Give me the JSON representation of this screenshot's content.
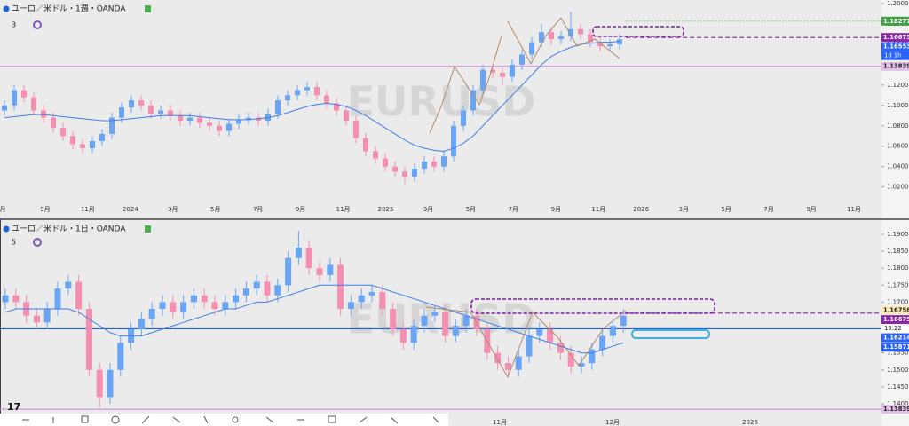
{
  "chart_data": [
    {
      "type": "candlestick",
      "title": "ユーロ／米ドル・1週・OANDA",
      "indicator_count": "3",
      "watermark": "EURUSD",
      "up_color": "#6aa5f5",
      "down_color": "#f48fb1",
      "open": [
        1.095,
        1.1,
        1.115,
        1.108,
        1.095,
        1.088,
        1.078,
        1.07,
        1.062,
        1.058,
        1.065,
        1.072,
        1.088,
        1.098,
        1.105,
        1.1,
        1.092,
        1.095,
        1.09,
        1.085,
        1.088,
        1.083,
        1.08,
        1.075,
        1.082,
        1.086,
        1.088,
        1.085,
        1.092,
        1.105,
        1.11,
        1.115,
        1.118,
        1.11,
        1.102,
        1.095,
        1.085,
        1.068,
        1.055,
        1.048,
        1.04,
        1.035,
        1.03,
        1.038,
        1.045,
        1.04,
        1.05,
        1.08,
        1.095,
        1.115,
        1.135,
        1.132,
        1.128,
        1.14,
        1.15,
        1.162,
        1.172,
        1.165,
        1.168,
        1.175,
        1.17,
        1.162,
        1.158,
        1.16
      ],
      "high": [
        1.105,
        1.12,
        1.12,
        1.113,
        1.1,
        1.093,
        1.083,
        1.075,
        1.067,
        1.07,
        1.077,
        1.093,
        1.103,
        1.11,
        1.11,
        1.105,
        1.1,
        1.1,
        1.095,
        1.093,
        1.093,
        1.088,
        1.085,
        1.087,
        1.091,
        1.093,
        1.093,
        1.097,
        1.11,
        1.115,
        1.12,
        1.123,
        1.123,
        1.115,
        1.107,
        1.1,
        1.09,
        1.073,
        1.06,
        1.053,
        1.045,
        1.04,
        1.043,
        1.05,
        1.05,
        1.055,
        1.085,
        1.1,
        1.12,
        1.14,
        1.14,
        1.137,
        1.145,
        1.155,
        1.167,
        1.18,
        1.177,
        1.173,
        1.192,
        1.18,
        1.175,
        1.167,
        1.165,
        1.17
      ],
      "low": [
        1.09,
        1.095,
        1.103,
        1.09,
        1.083,
        1.073,
        1.065,
        1.057,
        1.053,
        1.053,
        1.06,
        1.067,
        1.083,
        1.093,
        1.095,
        1.087,
        1.087,
        1.085,
        1.08,
        1.08,
        1.078,
        1.075,
        1.07,
        1.07,
        1.077,
        1.081,
        1.08,
        1.08,
        1.087,
        1.1,
        1.105,
        1.11,
        1.105,
        1.097,
        1.09,
        1.08,
        1.063,
        1.05,
        1.043,
        1.035,
        1.03,
        1.023,
        1.025,
        1.033,
        1.035,
        1.035,
        1.045,
        1.075,
        1.09,
        1.11,
        1.127,
        1.12,
        1.123,
        1.135,
        1.145,
        1.157,
        1.16,
        1.16,
        1.163,
        1.165,
        1.157,
        1.153,
        1.153,
        1.155
      ],
      "close": [
        1.1,
        1.115,
        1.108,
        1.095,
        1.088,
        1.078,
        1.07,
        1.062,
        1.058,
        1.065,
        1.072,
        1.088,
        1.098,
        1.105,
        1.1,
        1.092,
        1.095,
        1.09,
        1.085,
        1.088,
        1.083,
        1.08,
        1.075,
        1.082,
        1.086,
        1.088,
        1.085,
        1.092,
        1.105,
        1.11,
        1.115,
        1.118,
        1.11,
        1.102,
        1.095,
        1.085,
        1.068,
        1.055,
        1.048,
        1.04,
        1.035,
        1.03,
        1.038,
        1.045,
        1.04,
        1.05,
        1.08,
        1.095,
        1.115,
        1.135,
        1.132,
        1.128,
        1.14,
        1.15,
        1.162,
        1.172,
        1.165,
        1.168,
        1.175,
        1.17,
        1.162,
        1.158,
        1.16,
        1.165
      ],
      "ma": {
        "color": "#3f7fe6",
        "values": [
          1.088,
          1.089,
          1.09,
          1.091,
          1.091,
          1.09,
          1.089,
          1.088,
          1.087,
          1.086,
          1.085,
          1.085,
          1.086,
          1.087,
          1.088,
          1.089,
          1.09,
          1.09,
          1.09,
          1.09,
          1.089,
          1.088,
          1.087,
          1.086,
          1.086,
          1.086,
          1.087,
          1.088,
          1.09,
          1.093,
          1.096,
          1.099,
          1.101,
          1.102,
          1.101,
          1.099,
          1.095,
          1.09,
          1.084,
          1.078,
          1.072,
          1.066,
          1.061,
          1.058,
          1.056,
          1.055,
          1.058,
          1.063,
          1.07,
          1.08,
          1.09,
          1.1,
          1.11,
          1.12,
          1.13,
          1.14,
          1.148,
          1.153,
          1.157,
          1.16,
          1.161,
          1.162,
          1.162,
          1.163
        ]
      },
      "ylim": [
        1.0075,
        1.2035
      ],
      "yticks": [
        {
          "value": 1.02,
          "label": "1.02000"
        },
        {
          "value": 1.04,
          "label": "1.04000"
        },
        {
          "value": 1.06,
          "label": "1.06000"
        },
        {
          "value": 1.08,
          "label": "1.08000"
        },
        {
          "value": 1.1,
          "label": "1.10000"
        },
        {
          "value": 1.12,
          "label": "1.12000"
        },
        {
          "value": 1.14,
          "label": "1.14000"
        },
        {
          "value": 1.16,
          "label": "1.16000"
        },
        {
          "value": 1.18,
          "label": "1.18000"
        },
        {
          "value": 1.2,
          "label": "1.20000"
        }
      ],
      "x_labels": [
        "月",
        "9月",
        "11月",
        "2024",
        "3月",
        "5月",
        "7月",
        "9月",
        "11月",
        "2025",
        "3月",
        "5月",
        "7月",
        "9月",
        "11月",
        "2026",
        "3月",
        "5月",
        "7月",
        "9月",
        "11月"
      ],
      "levels": [
        {
          "value": 1.18277,
          "color": "#66bb6a",
          "style": "dotted"
        },
        {
          "value": 1.16675,
          "color": "#8e24aa",
          "style": "dashed"
        },
        {
          "value": 1.13839,
          "color": "#ce93d8",
          "style": "solid"
        }
      ],
      "price_tags": [
        {
          "value": 1.18277,
          "label": "1.18277",
          "color": "#43a047",
          "text_color": "#ffffff"
        },
        {
          "value": 1.16675,
          "label": "1.16675",
          "color": "#8e24aa",
          "text_color": "#ffffff"
        },
        {
          "value": 1.16553,
          "label": "1.16553",
          "color": "#2962ff",
          "text_color": "#ffffff",
          "countdown": "1d 1h"
        },
        {
          "value": 1.13839,
          "label": "1.13839",
          "color": "#e1bee7",
          "text_color": "#222222"
        }
      ]
    },
    {
      "type": "candlestick",
      "title": "ユーロ／米ドル・1日・OANDA",
      "indicator_count": "5",
      "watermark": "EURUSD",
      "up_color": "#6aa5f5",
      "down_color": "#f48fb1",
      "open": [
        1.17,
        1.172,
        1.17,
        1.166,
        1.164,
        1.168,
        1.174,
        1.176,
        1.168,
        1.15,
        1.142,
        1.15,
        1.158,
        1.162,
        1.165,
        1.168,
        1.17,
        1.167,
        1.17,
        1.172,
        1.17,
        1.168,
        1.17,
        1.172,
        1.174,
        1.176,
        1.172,
        1.175,
        1.183,
        1.186,
        1.18,
        1.178,
        1.181,
        1.168,
        1.17,
        1.172,
        1.173,
        1.168,
        1.162,
        1.158,
        1.163,
        1.166,
        1.167,
        1.16,
        1.163,
        1.166,
        1.162,
        1.155,
        1.152,
        1.15,
        1.154,
        1.16,
        1.162,
        1.158,
        1.155,
        1.151,
        1.152,
        1.156,
        1.16,
        1.163
      ],
      "high": [
        1.174,
        1.174,
        1.172,
        1.168,
        1.17,
        1.176,
        1.178,
        1.178,
        1.17,
        1.152,
        1.152,
        1.16,
        1.164,
        1.167,
        1.17,
        1.172,
        1.172,
        1.172,
        1.174,
        1.174,
        1.172,
        1.172,
        1.174,
        1.176,
        1.178,
        1.178,
        1.177,
        1.185,
        1.191,
        1.188,
        1.182,
        1.183,
        1.183,
        1.172,
        1.174,
        1.175,
        1.175,
        1.17,
        1.164,
        1.165,
        1.168,
        1.169,
        1.169,
        1.165,
        1.168,
        1.168,
        1.164,
        1.157,
        1.154,
        1.156,
        1.162,
        1.164,
        1.164,
        1.16,
        1.157,
        1.154,
        1.158,
        1.162,
        1.165,
        1.168
      ],
      "low": [
        1.168,
        1.168,
        1.164,
        1.162,
        1.162,
        1.166,
        1.172,
        1.166,
        1.148,
        1.139,
        1.14,
        1.148,
        1.156,
        1.16,
        1.163,
        1.166,
        1.165,
        1.165,
        1.168,
        1.168,
        1.166,
        1.166,
        1.168,
        1.17,
        1.172,
        1.17,
        1.17,
        1.173,
        1.181,
        1.178,
        1.176,
        1.176,
        1.166,
        1.166,
        1.168,
        1.17,
        1.166,
        1.16,
        1.156,
        1.156,
        1.161,
        1.164,
        1.158,
        1.158,
        1.161,
        1.16,
        1.153,
        1.15,
        1.148,
        1.148,
        1.152,
        1.158,
        1.156,
        1.153,
        1.149,
        1.149,
        1.15,
        1.154,
        1.158,
        1.161
      ],
      "close": [
        1.172,
        1.17,
        1.166,
        1.164,
        1.168,
        1.174,
        1.176,
        1.168,
        1.15,
        1.142,
        1.15,
        1.158,
        1.162,
        1.165,
        1.168,
        1.17,
        1.167,
        1.17,
        1.172,
        1.17,
        1.168,
        1.17,
        1.172,
        1.174,
        1.176,
        1.172,
        1.175,
        1.183,
        1.186,
        1.18,
        1.178,
        1.181,
        1.168,
        1.17,
        1.172,
        1.173,
        1.168,
        1.162,
        1.158,
        1.163,
        1.166,
        1.167,
        1.16,
        1.163,
        1.166,
        1.162,
        1.155,
        1.152,
        1.15,
        1.154,
        1.16,
        1.162,
        1.158,
        1.155,
        1.151,
        1.152,
        1.156,
        1.16,
        1.163,
        1.166
      ],
      "ma": {
        "color": "#3f7fe6",
        "values": [
          1.167,
          1.168,
          1.168,
          1.168,
          1.168,
          1.168,
          1.168,
          1.167,
          1.165,
          1.163,
          1.161,
          1.16,
          1.16,
          1.16,
          1.161,
          1.162,
          1.163,
          1.164,
          1.165,
          1.166,
          1.167,
          1.168,
          1.168,
          1.169,
          1.17,
          1.17,
          1.171,
          1.172,
          1.173,
          1.174,
          1.175,
          1.175,
          1.175,
          1.175,
          1.175,
          1.175,
          1.174,
          1.173,
          1.172,
          1.171,
          1.17,
          1.169,
          1.168,
          1.167,
          1.166,
          1.165,
          1.164,
          1.163,
          1.162,
          1.161,
          1.16,
          1.159,
          1.158,
          1.157,
          1.156,
          1.155,
          1.155,
          1.156,
          1.157,
          1.158
        ]
      },
      "ylim": [
        1.13607,
        1.19314
      ],
      "yticks": [
        {
          "value": 1.14,
          "label": "1.14000"
        },
        {
          "value": 1.145,
          "label": "1.14500"
        },
        {
          "value": 1.15,
          "label": "1.15000"
        },
        {
          "value": 1.155,
          "label": "1.15500"
        },
        {
          "value": 1.16,
          "label": "1.16000"
        },
        {
          "value": 1.165,
          "label": "1.16500"
        },
        {
          "value": 1.17,
          "label": "1.17000"
        },
        {
          "value": 1.175,
          "label": "1.17500"
        },
        {
          "value": 1.18,
          "label": "1.18000"
        },
        {
          "value": 1.185,
          "label": "1.18500"
        },
        {
          "value": 1.19,
          "label": "1.19000"
        }
      ],
      "x_labels": [
        "11月",
        "12月",
        "2026"
      ],
      "levels": [
        {
          "value": 1.16675,
          "color": "#8e24aa",
          "style": "dashed"
        },
        {
          "value": 1.16214,
          "color": "#1e63d6",
          "style": "solid"
        },
        {
          "value": 1.13839,
          "color": "#ce93d8",
          "style": "solid"
        }
      ],
      "price_tags": [
        {
          "value": 1.16758,
          "label": "1.16758",
          "color": "#ffe9b8",
          "text_color": "#222222"
        },
        {
          "value": 1.16675,
          "label": "1.16675",
          "color": "#8e24aa",
          "text_color": "#ffffff",
          "countdown": "15:22"
        },
        {
          "value": 1.16214,
          "label": "1.16214",
          "color": "#2962ff",
          "text_color": "#ffffff"
        },
        {
          "value": 1.15871,
          "label": "1.15871",
          "color": "#2962ff",
          "text_color": "#ffffff"
        },
        {
          "value": 1.13839,
          "label": "1.13839",
          "color": "#e1bee7",
          "text_color": "#222222"
        }
      ]
    }
  ]
}
